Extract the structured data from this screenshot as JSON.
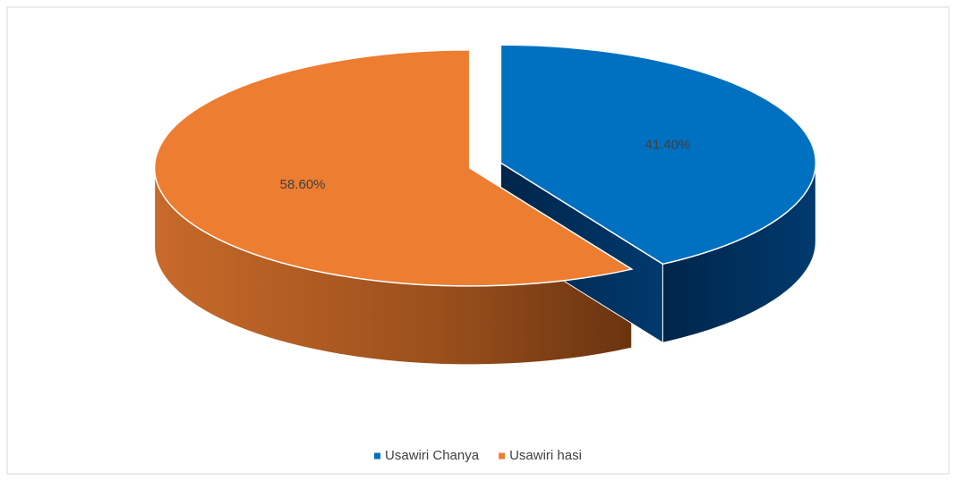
{
  "chart_data": {
    "type": "pie",
    "categories": [
      "Usawiri Chanya",
      "Usawiri hasi"
    ],
    "values": [
      41.4,
      58.6
    ],
    "value_labels": [
      "41.40%",
      "58.60%"
    ],
    "colors": [
      "#0070c0",
      "#ed7d31"
    ],
    "legend": "bottom"
  }
}
